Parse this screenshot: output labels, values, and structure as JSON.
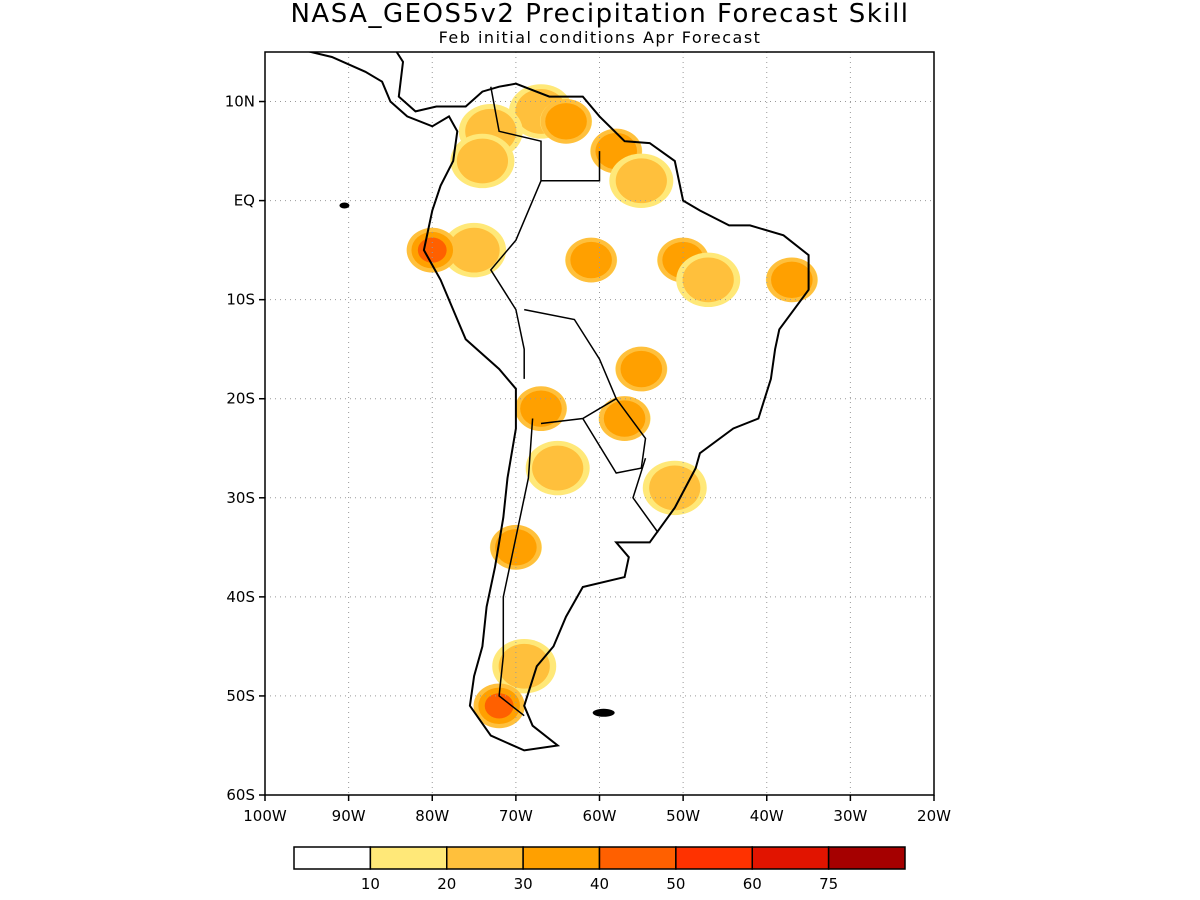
{
  "header": {
    "title": "NASA_GEOS5v2 Precipitation Forecast Skill",
    "subtitle": "Feb initial conditions  Apr Forecast"
  },
  "map": {
    "lon_range": [
      -100,
      -20
    ],
    "lat_range": [
      -60,
      15
    ],
    "lat_ticks": [
      {
        "value": 10,
        "label": "10N"
      },
      {
        "value": 0,
        "label": "EQ"
      },
      {
        "value": -10,
        "label": "10S"
      },
      {
        "value": -20,
        "label": "20S"
      },
      {
        "value": -30,
        "label": "30S"
      },
      {
        "value": -40,
        "label": "40S"
      },
      {
        "value": -50,
        "label": "50S"
      },
      {
        "value": -60,
        "label": "60S"
      }
    ],
    "lon_ticks": [
      {
        "value": -100,
        "label": "100W"
      },
      {
        "value": -90,
        "label": "90W"
      },
      {
        "value": -80,
        "label": "80W"
      },
      {
        "value": -70,
        "label": "70W"
      },
      {
        "value": -60,
        "label": "60W"
      },
      {
        "value": -50,
        "label": "50W"
      },
      {
        "value": -40,
        "label": "40W"
      },
      {
        "value": -30,
        "label": "30W"
      },
      {
        "value": -20,
        "label": "20W"
      }
    ],
    "grid": "dotted",
    "coastline_color": "#000000"
  },
  "colorbar": {
    "colors": [
      "#ffffff",
      "#ffe878",
      "#ffc03c",
      "#ffa000",
      "#ff6000",
      "#ff3200",
      "#e11400",
      "#a50000"
    ],
    "labels": [
      "10",
      "20",
      "30",
      "40",
      "50",
      "60",
      "75"
    ]
  },
  "skill_regions": [
    {
      "lon": -67,
      "lat": 9,
      "level": 2
    },
    {
      "lon": -64,
      "lat": 8,
      "level": 3
    },
    {
      "lon": -73,
      "lat": 7,
      "level": 2
    },
    {
      "lon": -74,
      "lat": 4,
      "level": 2
    },
    {
      "lon": -58,
      "lat": 5,
      "level": 3
    },
    {
      "lon": -55,
      "lat": 2,
      "level": 2
    },
    {
      "lon": -61,
      "lat": -6,
      "level": 3
    },
    {
      "lon": -50,
      "lat": -6,
      "level": 3
    },
    {
      "lon": -47,
      "lat": -8,
      "level": 2
    },
    {
      "lon": -37,
      "lat": -8,
      "level": 3
    },
    {
      "lon": -75,
      "lat": -5,
      "level": 2
    },
    {
      "lon": -80,
      "lat": -5,
      "level": 4
    },
    {
      "lon": -55,
      "lat": -17,
      "level": 3
    },
    {
      "lon": -57,
      "lat": -22,
      "level": 3
    },
    {
      "lon": -67,
      "lat": -21,
      "level": 3
    },
    {
      "lon": -65,
      "lat": -27,
      "level": 2
    },
    {
      "lon": -51,
      "lat": -29,
      "level": 2
    },
    {
      "lon": -70,
      "lat": -35,
      "level": 3
    },
    {
      "lon": -69,
      "lat": -47,
      "level": 2
    },
    {
      "lon": -72,
      "lat": -51,
      "level": 4
    }
  ]
}
